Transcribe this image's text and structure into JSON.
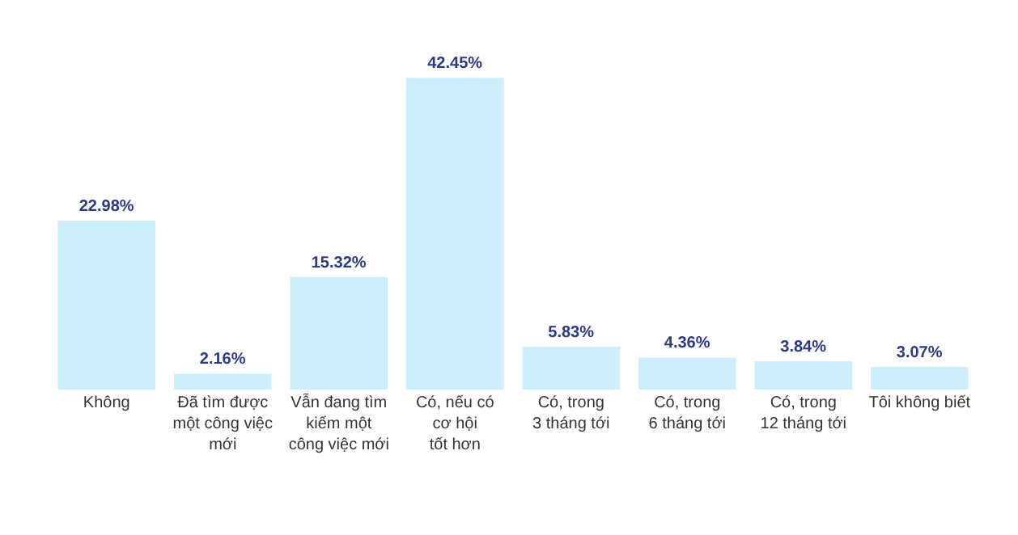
{
  "chart_data": {
    "type": "bar",
    "categories": [
      "Không",
      "Đã tìm được\nmột công việc\nmới",
      "Vẫn đang tìm\nkiếm một\ncông việc mới",
      "Có, nếu có\ncơ hội\ntốt hơn",
      "Có, trong\n3 tháng tới",
      "Có, trong\n6 tháng tới",
      "Có, trong\n12 tháng tới",
      "Tôi không biết"
    ],
    "values": [
      22.98,
      2.16,
      15.32,
      42.45,
      5.83,
      4.36,
      3.84,
      3.07
    ],
    "value_labels": [
      "22.98%",
      "2.16%",
      "15.32%",
      "42.45%",
      "5.83%",
      "4.36%",
      "3.84%",
      "3.07%"
    ],
    "color": "#cdeefb"
  }
}
